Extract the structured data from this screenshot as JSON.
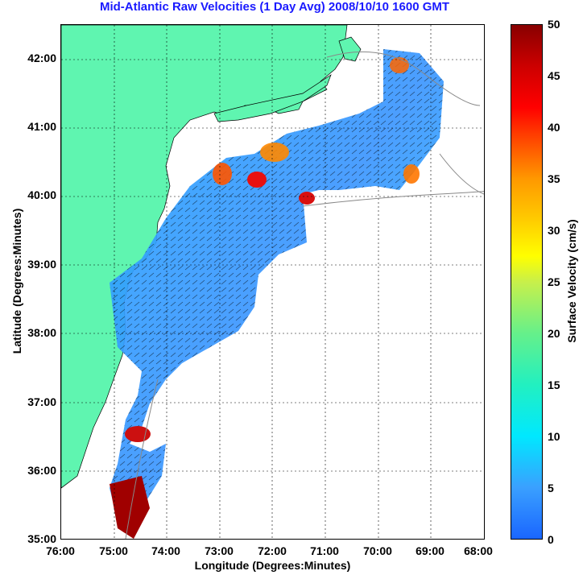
{
  "title": "Mid-Atlantic Raw Velocities (1 Day Avg) 2008/10/10 1600 GMT",
  "map": {
    "xlabel": "Longitude (Degrees:Minutes)",
    "ylabel": "Latitude (Degrees:Minutes)",
    "longitude_ticks": [
      "76:00",
      "75:00",
      "74:00",
      "73:00",
      "72:00",
      "71:00",
      "70:00",
      "69:00",
      "68:00"
    ],
    "latitude_ticks": [
      "42:00",
      "41:00",
      "40:00",
      "39:00",
      "38:00",
      "37:00",
      "36:00",
      "35:00"
    ],
    "land_color": "#5ff5b0",
    "grid": true
  },
  "colorbar": {
    "label": "Surface Velocity (cm/s)",
    "ticks": [
      "50",
      "45",
      "40",
      "35",
      "30",
      "25",
      "20",
      "15",
      "10",
      "5",
      "0"
    ],
    "range": [
      0,
      50
    ]
  }
}
